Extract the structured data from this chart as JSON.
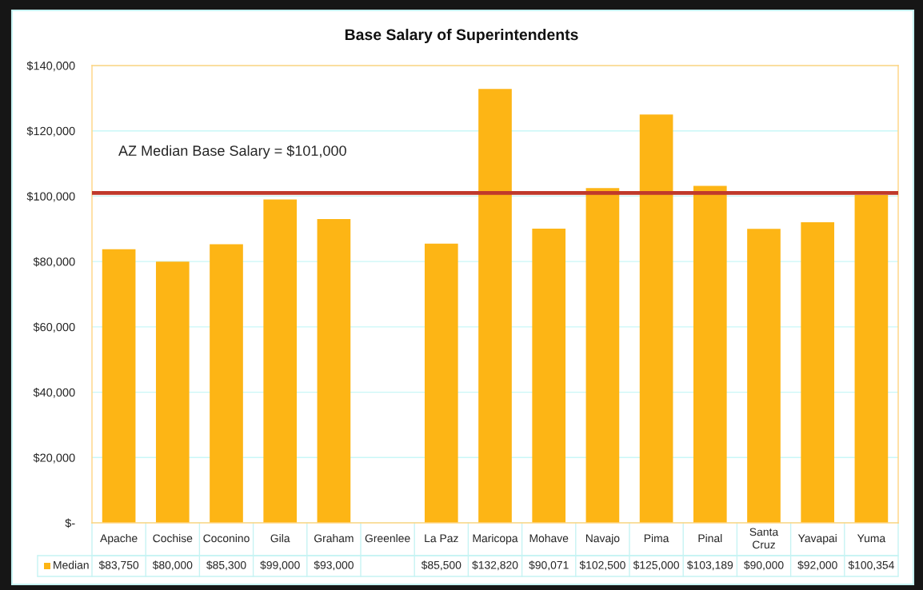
{
  "chart_data": {
    "type": "bar",
    "title": "Base Salary of Superintendents",
    "categories": [
      "Apache",
      "Cochise",
      "Coconino",
      "Gila",
      "Graham",
      "Greenlee",
      "La Paz",
      "Maricopa",
      "Mohave",
      "Navajo",
      "Pima",
      "Pinal",
      "Santa Cruz",
      "Yavapai",
      "Yuma"
    ],
    "series": [
      {
        "name": "Median",
        "color": "#fdb515",
        "values": [
          83750,
          80000,
          85300,
          99000,
          93000,
          null,
          85500,
          132820,
          90071,
          102500,
          125000,
          103189,
          90000,
          92000,
          100354
        ],
        "value_labels": [
          "$83,750",
          "$80,000",
          "$85,300",
          "$99,000",
          "$93,000",
          null,
          "$85,500",
          "$132,820",
          "$90,071",
          "$102,500",
          "$125,000",
          "$103,189",
          "$90,000",
          "$92,000",
          "$100,354"
        ]
      }
    ],
    "ylim": [
      0,
      140000
    ],
    "yticks": [
      {
        "value": 0,
        "label": "$-"
      },
      {
        "value": 20000,
        "label": "$20,000"
      },
      {
        "value": 40000,
        "label": "$40,000"
      },
      {
        "value": 60000,
        "label": "$60,000"
      },
      {
        "value": 80000,
        "label": "$80,000"
      },
      {
        "value": 100000,
        "label": "$100,000"
      },
      {
        "value": 120000,
        "label": "$120,000"
      },
      {
        "value": 140000,
        "label": "$140,000"
      }
    ],
    "grid": "y",
    "legend": "bottom",
    "ref_lines": [
      {
        "axis": "y",
        "value": 101000,
        "label": "AZ Median Base Salary = $101,000",
        "color": "#c0392b"
      }
    ]
  }
}
